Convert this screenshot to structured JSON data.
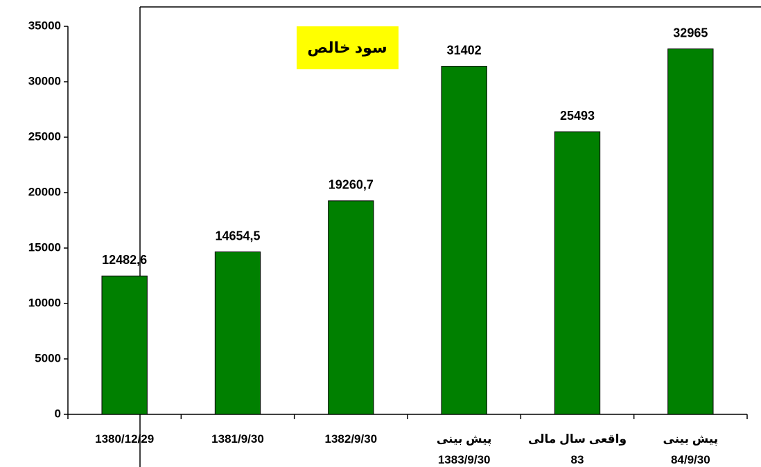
{
  "chart_data": {
    "type": "bar",
    "title": "سود خالص",
    "categories": [
      "1380/12/29",
      "1381/9/30",
      "1382/9/30",
      "پیش بینی\n1383/9/30",
      "واقعی سال مالی\n83",
      "پیش بینی\n84/9/30"
    ],
    "values": [
      12482.6,
      14654.5,
      19260.7,
      31402,
      25493,
      32965
    ],
    "value_labels": [
      "12482,6",
      "14654,5",
      "19260,7",
      "31402",
      "25493",
      "32965"
    ],
    "color": "#008000",
    "ylim": [
      0,
      35000
    ],
    "yticks": [
      0,
      5000,
      10000,
      15000,
      20000,
      25000,
      30000,
      35000
    ],
    "grid": false
  }
}
